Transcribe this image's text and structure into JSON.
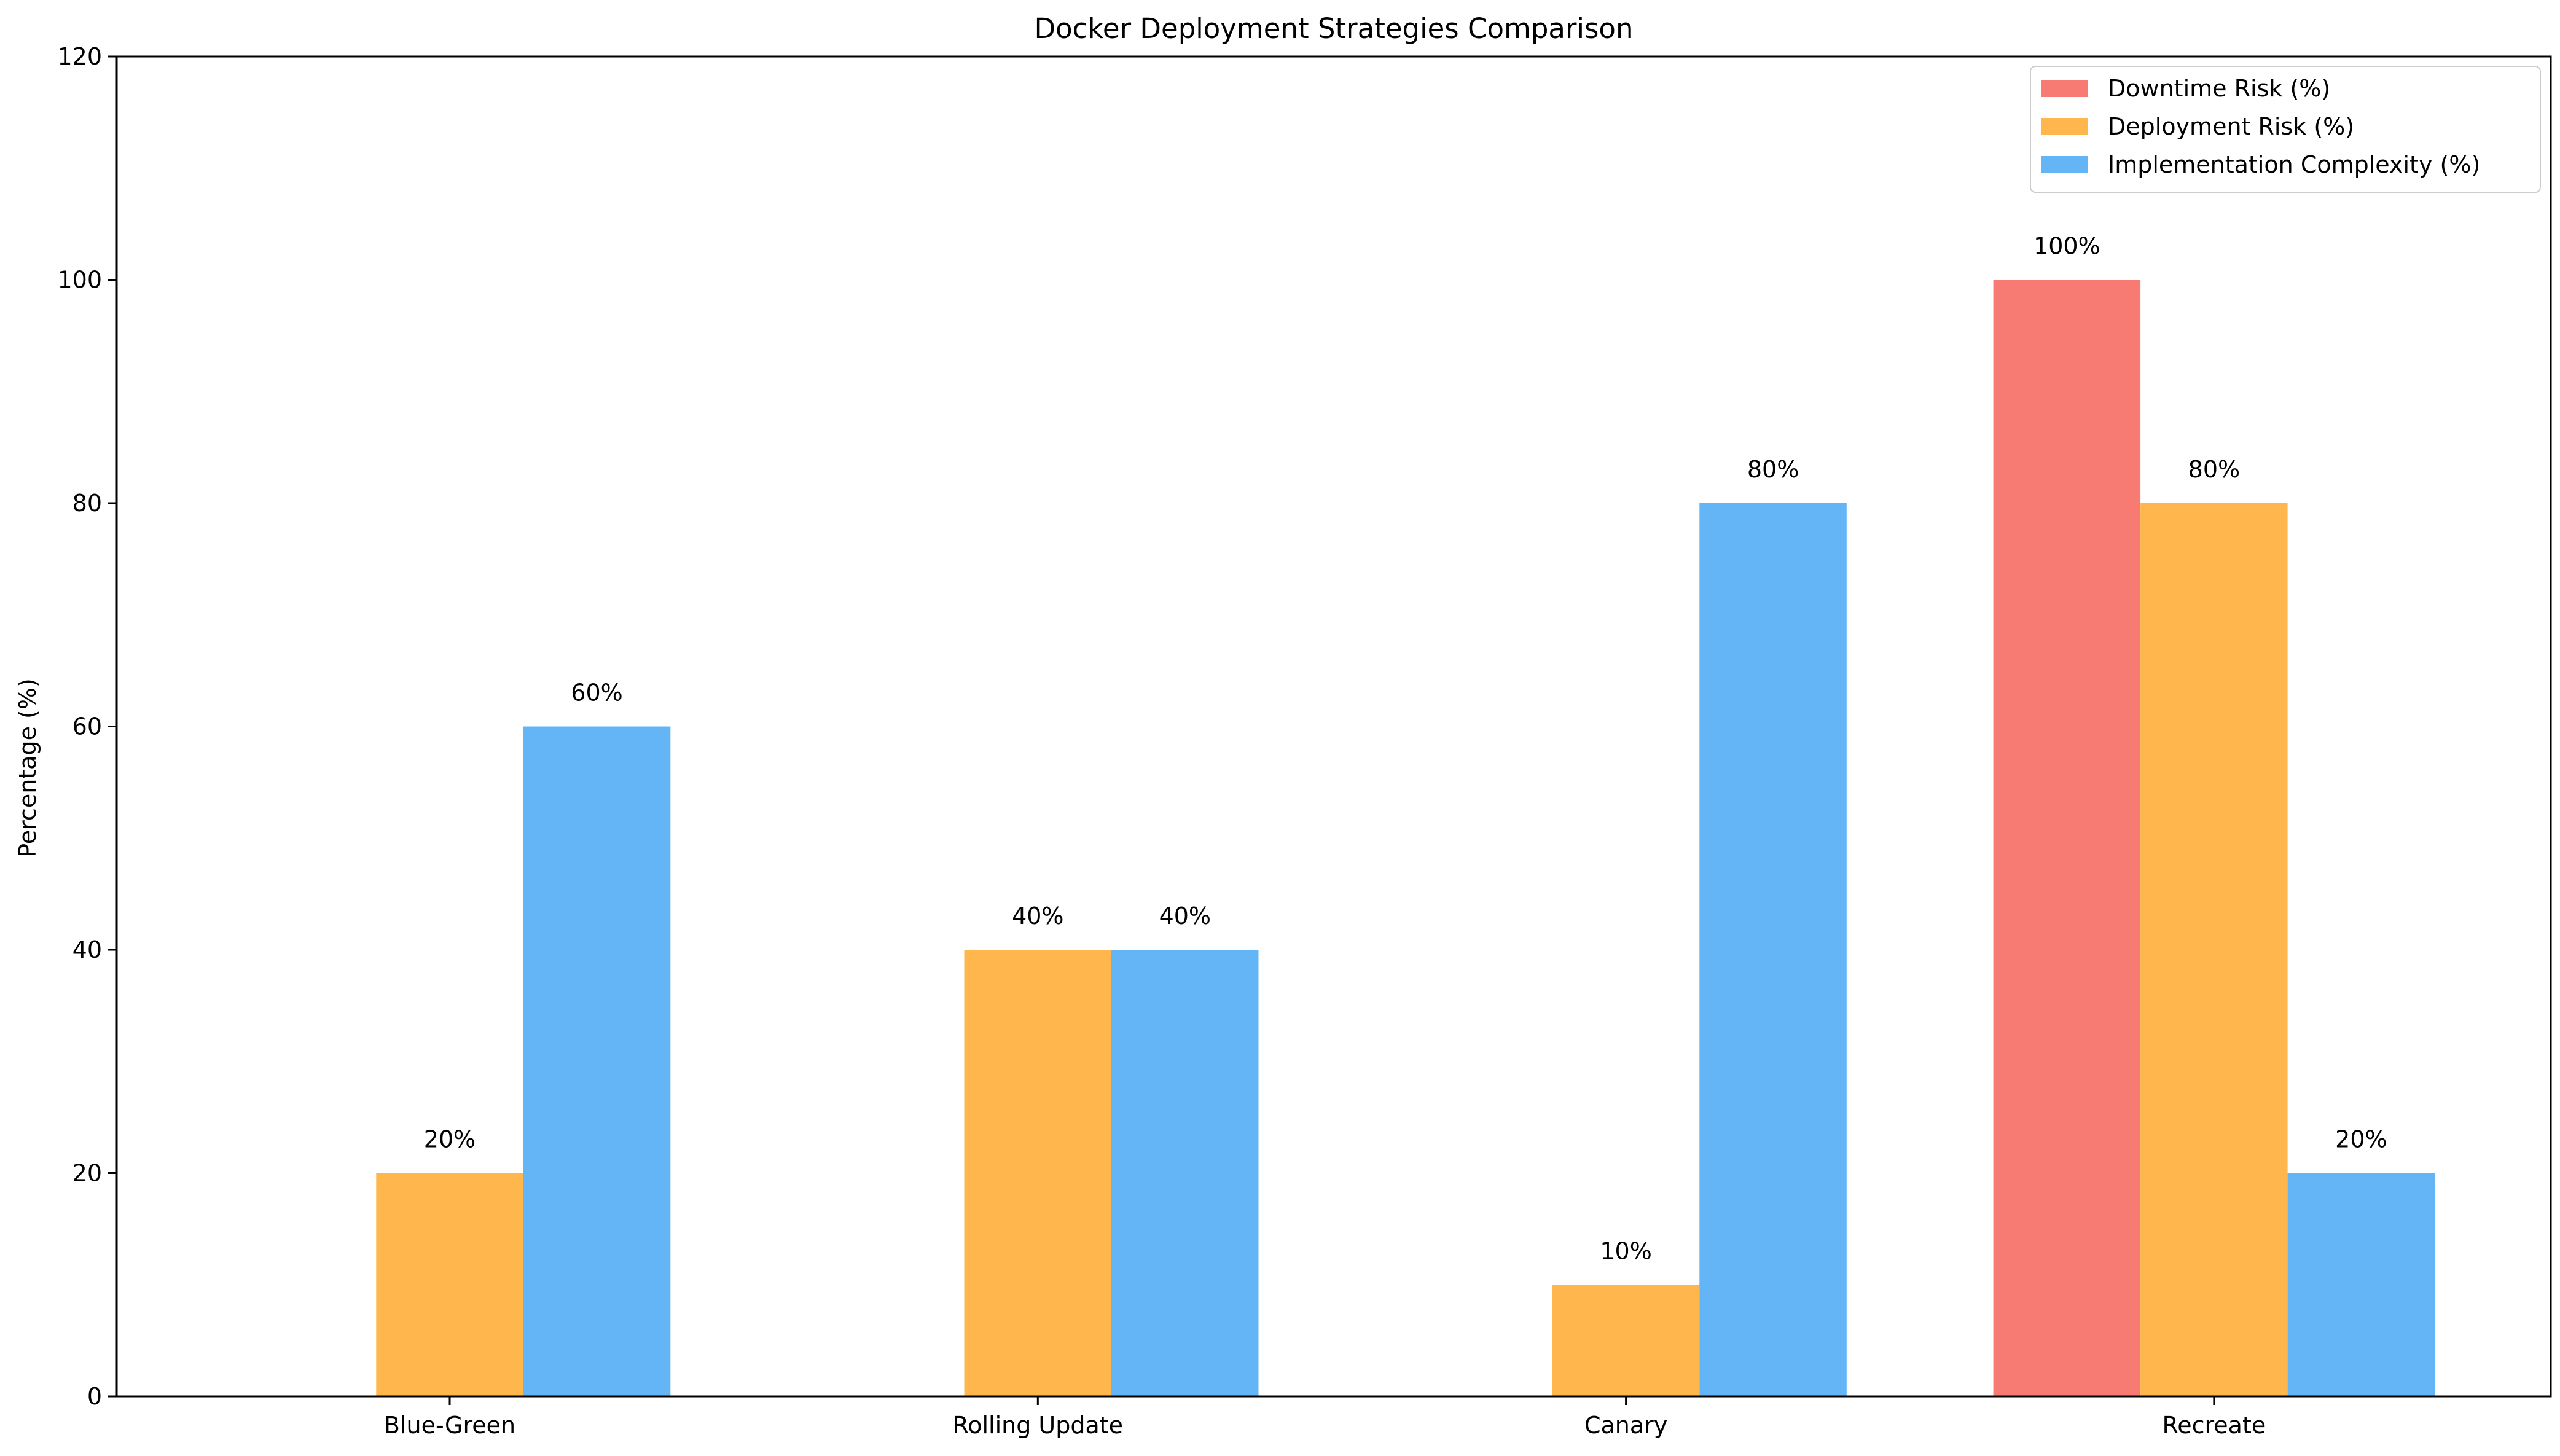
{
  "chart_data": {
    "type": "bar",
    "title": "Docker Deployment Strategies Comparison",
    "xlabel": "",
    "ylabel": "Percentage (%)",
    "ylim": [
      0,
      120
    ],
    "yticks": [
      0,
      20,
      40,
      60,
      80,
      100,
      120
    ],
    "categories": [
      "Blue-Green",
      "Rolling Update",
      "Canary",
      "Recreate"
    ],
    "series": [
      {
        "name": "Downtime Risk (%)",
        "color": "#f77b72",
        "values": [
          0,
          0,
          0,
          100
        ],
        "labels": [
          "",
          "",
          "",
          "100%"
        ]
      },
      {
        "name": "Deployment Risk (%)",
        "color": "#ffb74d",
        "values": [
          20,
          40,
          10,
          80
        ],
        "labels": [
          "20%",
          "40%",
          "10%",
          "80%"
        ]
      },
      {
        "name": "Implementation Complexity (%)",
        "color": "#64b5f6",
        "values": [
          60,
          40,
          80,
          20
        ],
        "labels": [
          "60%",
          "40%",
          "80%",
          "20%"
        ]
      }
    ],
    "legend_position": "top-right",
    "grid": false
  }
}
